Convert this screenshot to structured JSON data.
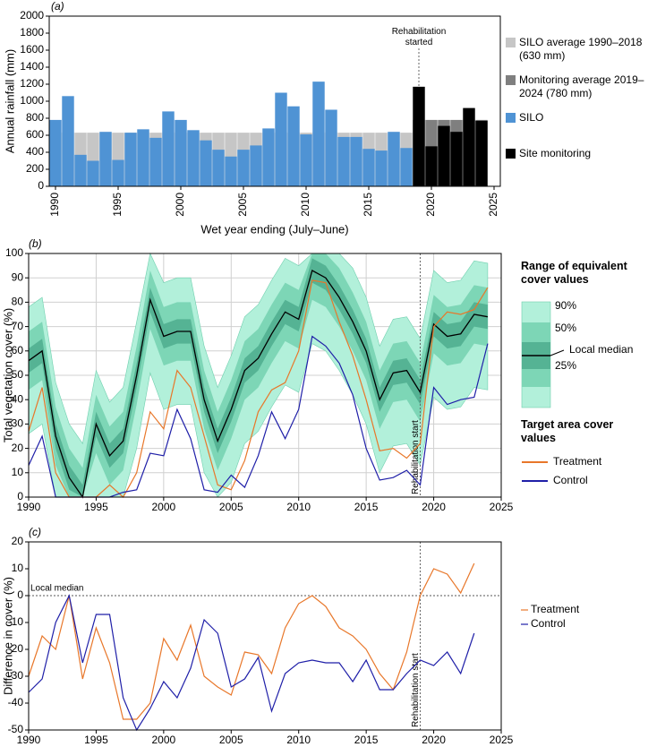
{
  "chart_data": [
    {
      "type": "bar",
      "panel_label": "(a)",
      "ylabel": "Annual rainfall (mm)",
      "xlabel": "Wet year ending (July–June)",
      "xlim": [
        1989.5,
        2025.5
      ],
      "xticks": [
        1990,
        1995,
        2000,
        2005,
        2010,
        2015,
        2020,
        2025
      ],
      "ylim": [
        0,
        2000
      ],
      "yticks": [
        0,
        200,
        400,
        600,
        800,
        1000,
        1200,
        1400,
        1600,
        1800,
        2000
      ],
      "averages": [
        {
          "name": "SILO average 1990–2018 (630 mm)",
          "color": "#c6c6c6",
          "value": 630
        },
        {
          "name": "Monitoring average 2019–2024 (780 mm)",
          "color": "#7f7f7f",
          "value": 780
        }
      ],
      "series": [
        {
          "name": "SILO",
          "color": "#4f93d4",
          "x": [
            1990,
            1991,
            1992,
            1993,
            1994,
            1995,
            1996,
            1997,
            1998,
            1999,
            2000,
            2001,
            2002,
            2003,
            2004,
            2005,
            2006,
            2007,
            2008,
            2009,
            2010,
            2011,
            2012,
            2013,
            2014,
            2015,
            2016,
            2017,
            2018
          ],
          "values": [
            780,
            1060,
            370,
            300,
            640,
            310,
            630,
            670,
            570,
            880,
            780,
            660,
            540,
            430,
            350,
            430,
            480,
            680,
            1100,
            940,
            610,
            1230,
            900,
            580,
            580,
            440,
            420,
            640,
            450
          ]
        },
        {
          "name": "Site monitoring",
          "color": "#000000",
          "x": [
            2019,
            2020,
            2021,
            2022,
            2023,
            2024
          ],
          "values": [
            1170,
            470,
            710,
            640,
            920,
            770
          ]
        }
      ],
      "annotation": {
        "text": "Rehabilitation started",
        "x": 2019
      }
    },
    {
      "type": "line",
      "panel_label": "(b)",
      "ylabel": "Total vegetation cover (%)",
      "xlim": [
        1990,
        2025
      ],
      "xticks": [
        1990,
        1995,
        2000,
        2005,
        2010,
        2015,
        2020,
        2025
      ],
      "ylim": [
        0,
        100
      ],
      "yticks": [
        0,
        10,
        20,
        30,
        40,
        50,
        60,
        70,
        80,
        90,
        100
      ],
      "grid": true,
      "legend_titles": [
        "Range of equivalent cover values",
        "Target area cover values"
      ],
      "x": [
        1990,
        1991,
        1992,
        1993,
        1994,
        1995,
        1996,
        1997,
        1998,
        1999,
        2000,
        2001,
        2002,
        2003,
        2004,
        2005,
        2006,
        2007,
        2008,
        2009,
        2010,
        2011,
        2012,
        2013,
        2014,
        2015,
        2016,
        2017,
        2018,
        2019,
        2020,
        2021,
        2022,
        2023,
        2024
      ],
      "bands": [
        {
          "name": "90%",
          "color": "#b2f0da",
          "upper": [
            78,
            82,
            47,
            30,
            22,
            52,
            39,
            45,
            72,
            100,
            88,
            90,
            90,
            62,
            45,
            58,
            74,
            79,
            89,
            98,
            95,
            100,
            100,
            100,
            94,
            82,
            62,
            73,
            74,
            65,
            93,
            88,
            89,
            97,
            96
          ],
          "lower": [
            26,
            30,
            0,
            0,
            0,
            0,
            0,
            0,
            20,
            51,
            36,
            38,
            38,
            10,
            0,
            6,
            22,
            27,
            37,
            46,
            43,
            63,
            60,
            52,
            42,
            30,
            10,
            21,
            22,
            13,
            41,
            36,
            37,
            45,
            44
          ]
        },
        {
          "name": "50%",
          "color": "#7dd6b6",
          "upper": [
            68,
            72,
            37,
            20,
            12,
            42,
            29,
            35,
            62,
            93,
            78,
            80,
            80,
            52,
            35,
            48,
            64,
            69,
            79,
            88,
            85,
            100,
            100,
            94,
            84,
            72,
            52,
            63,
            64,
            55,
            83,
            78,
            79,
            87,
            86
          ],
          "lower": [
            44,
            48,
            13,
            0,
            0,
            18,
            5,
            11,
            38,
            69,
            54,
            56,
            56,
            28,
            11,
            24,
            40,
            45,
            55,
            64,
            61,
            81,
            78,
            70,
            60,
            48,
            28,
            39,
            40,
            31,
            59,
            54,
            55,
            63,
            62
          ]
        },
        {
          "name": "25%",
          "color": "#55b394",
          "upper": [
            61,
            65,
            30,
            13,
            5,
            35,
            22,
            28,
            55,
            86,
            71,
            73,
            73,
            45,
            28,
            41,
            57,
            62,
            72,
            81,
            78,
            98,
            95,
            87,
            77,
            65,
            45,
            56,
            57,
            48,
            76,
            71,
            72,
            80,
            79
          ],
          "lower": [
            51,
            55,
            20,
            3,
            0,
            25,
            12,
            18,
            45,
            76,
            61,
            63,
            63,
            35,
            18,
            31,
            47,
            52,
            62,
            71,
            68,
            88,
            85,
            77,
            67,
            55,
            35,
            46,
            47,
            38,
            66,
            61,
            62,
            70,
            69
          ]
        }
      ],
      "median": {
        "name": "Local median",
        "color": "#000000",
        "values": [
          56,
          60,
          25,
          8,
          0,
          30,
          17,
          23,
          50,
          81,
          66,
          68,
          68,
          40,
          23,
          36,
          52,
          57,
          67,
          76,
          73,
          93,
          90,
          82,
          72,
          60,
          40,
          51,
          52,
          43,
          71,
          66,
          67,
          75,
          74
        ]
      },
      "series": [
        {
          "name": "Treatment",
          "color": "#e8772a",
          "values": [
            27,
            45,
            10,
            0,
            0,
            0,
            5,
            0,
            10,
            35,
            28,
            52,
            45,
            25,
            5,
            3,
            15,
            35,
            44,
            47,
            60,
            89,
            88,
            72,
            58,
            40,
            19,
            20,
            16,
            22,
            70,
            76,
            75,
            77,
            86
          ]
        },
        {
          "name": "Control",
          "color": "#1f1fa8",
          "values": [
            13,
            25,
            0,
            0,
            0,
            0,
            0,
            2,
            3,
            18,
            17,
            36,
            24,
            3,
            2,
            9,
            4,
            17,
            35,
            24,
            36,
            66,
            62,
            55,
            42,
            20,
            7,
            8,
            11,
            5,
            45,
            38,
            40,
            41,
            63
          ]
        }
      ],
      "annotation": {
        "text": "Rehabilitation start",
        "x": 2019
      }
    },
    {
      "type": "line",
      "panel_label": "(c)",
      "ylabel": "Difference in cover (%)",
      "xlim": [
        1990,
        2025
      ],
      "xticks": [
        1990,
        1995,
        2000,
        2005,
        2010,
        2015,
        2020,
        2025
      ],
      "ylim": [
        -50,
        20
      ],
      "yticks": [
        -50,
        -40,
        -30,
        -20,
        -10,
        0,
        10,
        20
      ],
      "x": [
        1990,
        1991,
        1992,
        1993,
        1994,
        1995,
        1996,
        1997,
        1998,
        1999,
        2000,
        2001,
        2002,
        2003,
        2004,
        2005,
        2006,
        2007,
        2008,
        2009,
        2010,
        2011,
        2012,
        2013,
        2014,
        2015,
        2016,
        2017,
        2018,
        2019,
        2020,
        2021,
        2022,
        2023
      ],
      "reference_line": {
        "label": "Local median",
        "value": 0
      },
      "series": [
        {
          "name": "Treatment",
          "color": "#e8772a",
          "values": [
            -30,
            -15,
            -20,
            0,
            -31,
            -12,
            -25,
            -46,
            -46,
            -40,
            -16,
            -24,
            -11,
            -30,
            -34,
            -37,
            -21,
            -22,
            -29,
            -12,
            -3,
            0,
            -4,
            -12,
            -15,
            -20,
            -29,
            -35,
            -21,
            0,
            10,
            8,
            1,
            12
          ]
        },
        {
          "name": "Control",
          "color": "#1f1fa8",
          "values": [
            -36,
            -31,
            -10,
            0,
            -25,
            -7,
            -7,
            -38,
            -50,
            -42,
            -32,
            -38,
            -27,
            -9,
            -14,
            -34,
            -31,
            -23,
            -43,
            -29,
            -25,
            -24,
            -25,
            -25,
            -32,
            -24,
            -35,
            -35,
            -29,
            -24,
            -26,
            -21,
            -29,
            -14
          ]
        }
      ],
      "annotation": {
        "text": "Rehabilitation start",
        "x": 2019
      }
    }
  ]
}
